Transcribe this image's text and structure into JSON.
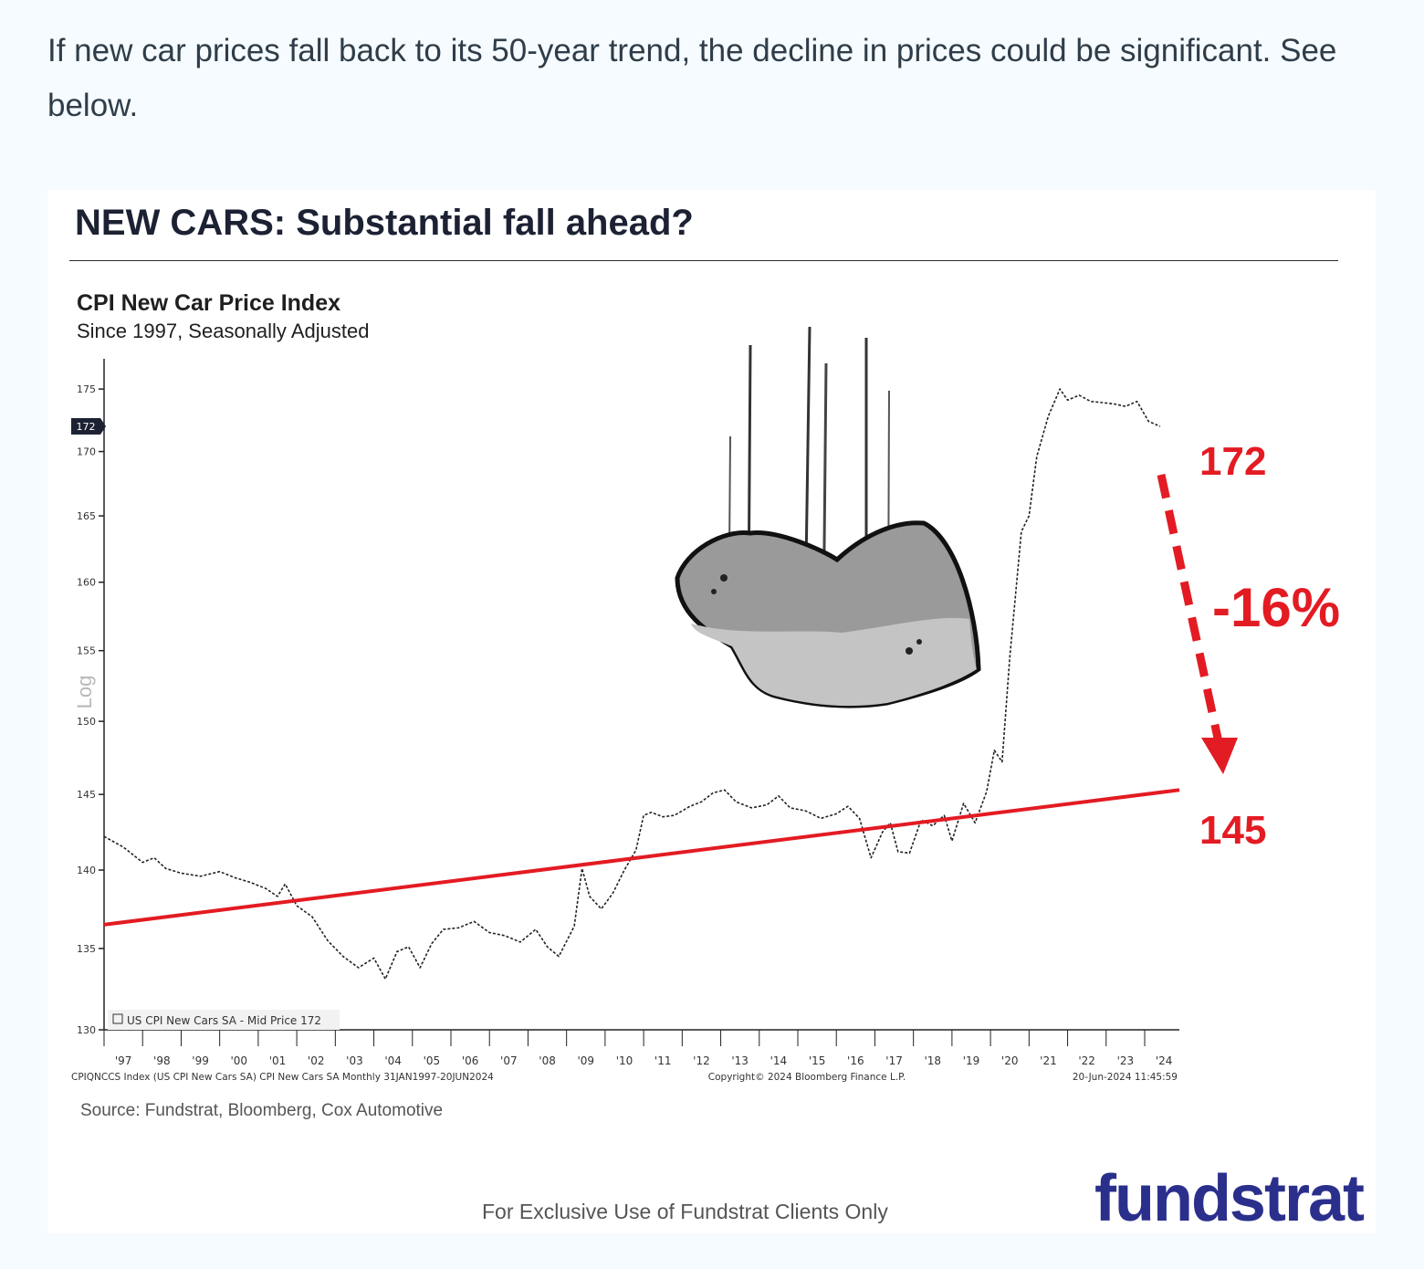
{
  "intro_text": "If new car prices fall back to its 50-year trend, the decline in prices could be significant. See below.",
  "card": {
    "title": "NEW CARS: Substantial fall ahead?",
    "source": "Source: Fundstrat, Bloomberg, Cox Automotive",
    "footer": "For Exclusive Use of Fundstrat Clients Only",
    "logo_text": "fundstrat"
  },
  "chart_data": {
    "type": "line",
    "title": "CPI New Car Price Index",
    "subtitle": "Since 1997, Seasonally Adjusted",
    "ylabel": "Log",
    "ylim": [
      130,
      178
    ],
    "y_scale": "log",
    "y_ticks": [
      130,
      135,
      140,
      145,
      150,
      155,
      160,
      165,
      170,
      175
    ],
    "x_tick_labels": [
      "'97",
      "'98",
      "'99",
      "'00",
      "'01",
      "'02",
      "'03",
      "'04",
      "'05",
      "'06",
      "'07",
      "'08",
      "'09",
      "'10",
      "'11",
      "'12",
      "'13",
      "'14",
      "'15",
      "'16",
      "'17",
      "'18",
      "'19",
      "'20",
      "'21",
      "'22",
      "'23",
      "'24"
    ],
    "xlim": [
      1997.0,
      2024.9
    ],
    "grid": false,
    "last_value_tag": "172",
    "legend_text": "US CPI New Cars SA - Mid Price 172",
    "footer_left": "CPIQNCCS Index (US CPI New Cars SA) CPI New Cars SA  Monthly 31JAN1997-20JUN2024",
    "footer_center": "Copyright© 2024 Bloomberg Finance L.P.",
    "footer_right": "20-Jun-2024 11:45:59",
    "series": [
      {
        "color": "#222222",
        "x": [
          1997.0,
          1997.5,
          1998.0,
          1998.3,
          1998.6,
          1999.0,
          1999.5,
          2000.0,
          2000.4,
          2000.8,
          2001.2,
          2001.5,
          2001.7,
          2002.0,
          2002.4,
          2002.8,
          2003.2,
          2003.6,
          2004.0,
          2004.3,
          2004.6,
          2004.9,
          2005.2,
          2005.5,
          2005.8,
          2006.2,
          2006.6,
          2007.0,
          2007.4,
          2007.8,
          2008.2,
          2008.5,
          2008.8,
          2009.2,
          2009.4,
          2009.6,
          2009.9,
          2010.2,
          2010.5,
          2010.8,
          2011.0,
          2011.2,
          2011.5,
          2011.8,
          2012.2,
          2012.5,
          2012.8,
          2013.1,
          2013.4,
          2013.8,
          2014.2,
          2014.5,
          2014.8,
          2015.2,
          2015.6,
          2016.0,
          2016.3,
          2016.6,
          2016.9,
          2017.2,
          2017.4,
          2017.6,
          2017.9,
          2018.2,
          2018.5,
          2018.8,
          2019.0,
          2019.3,
          2019.6,
          2019.9,
          2020.1,
          2020.3,
          2020.5,
          2020.8,
          2021.0,
          2021.2,
          2021.5,
          2021.8,
          2022.0,
          2022.3,
          2022.6,
          2022.9,
          2023.2,
          2023.5,
          2023.8,
          2024.1,
          2024.4
        ],
        "values": [
          142.2,
          141.5,
          140.5,
          140.8,
          140.1,
          139.8,
          139.6,
          139.9,
          139.5,
          139.2,
          138.8,
          138.3,
          139.1,
          137.7,
          137.0,
          135.5,
          134.5,
          133.8,
          134.4,
          133.1,
          134.8,
          135.1,
          133.8,
          135.3,
          136.2,
          136.3,
          136.7,
          136.0,
          135.8,
          135.4,
          136.2,
          135.1,
          134.5,
          136.4,
          140.1,
          138.3,
          137.5,
          138.5,
          140.0,
          141.3,
          143.6,
          143.8,
          143.5,
          143.6,
          144.2,
          144.5,
          145.1,
          145.3,
          144.5,
          144.1,
          144.3,
          144.9,
          144.1,
          143.9,
          143.4,
          143.7,
          144.2,
          143.4,
          140.8,
          142.5,
          143.1,
          141.2,
          141.1,
          143.3,
          142.9,
          143.6,
          141.9,
          144.4,
          143.1,
          145.2,
          148.0,
          147.2,
          154.5,
          163.8,
          165.0,
          169.6,
          172.8,
          175.0,
          174.1,
          174.5,
          174.0,
          173.9,
          173.8,
          173.6,
          174.0,
          172.4,
          172.0
        ]
      },
      {
        "color": "#e31b23",
        "x": [
          1997.0,
          2024.9
        ],
        "values": [
          136.5,
          145.3
        ]
      }
    ],
    "annotations": {
      "start_label": "172",
      "change_label": "-16%",
      "target_label": "145"
    }
  }
}
